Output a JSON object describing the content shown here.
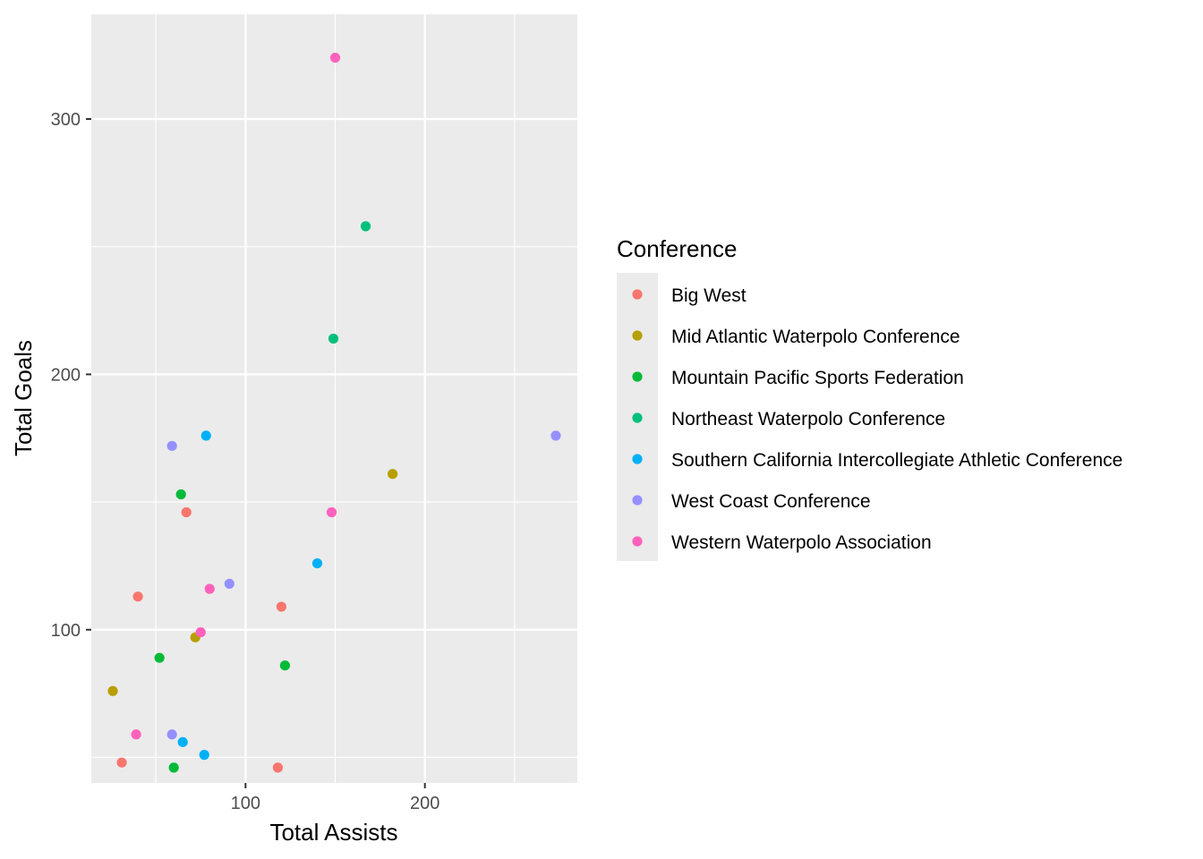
{
  "chart_data": {
    "type": "scatter",
    "xlabel": "Total Assists",
    "ylabel": "Total Goals",
    "xlim": [
      14,
      285
    ],
    "ylim": [
      40,
      341
    ],
    "x_ticks": [
      100,
      200
    ],
    "y_ticks": [
      100,
      200,
      300
    ],
    "x_minor_ticks": [
      50,
      150,
      250
    ],
    "y_minor_ticks": [
      50,
      150,
      250
    ],
    "grid": true,
    "legend_position": "right",
    "legend_title": "Conference",
    "series": [
      {
        "name": "Big West",
        "color": "#F8766D",
        "points": [
          {
            "x": 31,
            "y": 48
          },
          {
            "x": 118,
            "y": 46
          },
          {
            "x": 40,
            "y": 113
          },
          {
            "x": 67,
            "y": 146
          },
          {
            "x": 120,
            "y": 109
          }
        ]
      },
      {
        "name": "Mid Atlantic Waterpolo Conference",
        "color": "#B79F00",
        "points": [
          {
            "x": 26,
            "y": 76
          },
          {
            "x": 72,
            "y": 97
          },
          {
            "x": 182,
            "y": 161
          }
        ]
      },
      {
        "name": "Mountain Pacific Sports Federation",
        "color": "#00BA38",
        "points": [
          {
            "x": 60,
            "y": 46
          },
          {
            "x": 52,
            "y": 89
          },
          {
            "x": 122,
            "y": 86
          },
          {
            "x": 64,
            "y": 153
          }
        ]
      },
      {
        "name": "Northeast Waterpolo Conference",
        "color": "#00BF7D",
        "points": [
          {
            "x": 149,
            "y": 214
          },
          {
            "x": 167,
            "y": 258
          }
        ]
      },
      {
        "name": "Southern California Intercollegiate Athletic Conference",
        "color": "#00B0F6",
        "points": [
          {
            "x": 65,
            "y": 56
          },
          {
            "x": 77,
            "y": 51
          },
          {
            "x": 140,
            "y": 126
          },
          {
            "x": 78,
            "y": 176
          }
        ]
      },
      {
        "name": "West Coast Conference",
        "color": "#9590FF",
        "points": [
          {
            "x": 59,
            "y": 59
          },
          {
            "x": 91,
            "y": 118
          },
          {
            "x": 59,
            "y": 172
          },
          {
            "x": 273,
            "y": 176
          }
        ]
      },
      {
        "name": "Western Waterpolo Association",
        "color": "#FF62BC",
        "points": [
          {
            "x": 39,
            "y": 59
          },
          {
            "x": 75,
            "y": 99
          },
          {
            "x": 80,
            "y": 116
          },
          {
            "x": 148,
            "y": 146
          },
          {
            "x": 150,
            "y": 324
          }
        ]
      }
    ]
  },
  "colors": {
    "panel_background": "#EBEBEB",
    "grid_line": "#FFFFFF",
    "tick_text": "#4D4D4D",
    "legend_key_background": "#EBEBEB"
  }
}
